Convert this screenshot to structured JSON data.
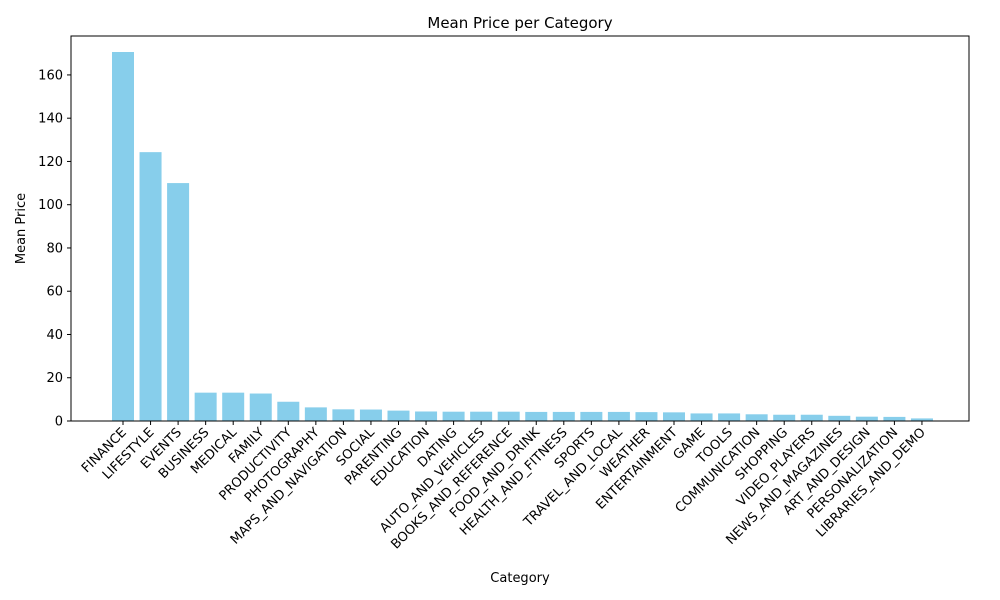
{
  "chart_data": {
    "type": "bar",
    "title": "Mean Price per Category",
    "xlabel": "Category",
    "ylabel": "Mean Price",
    "ylim": [
      0,
      178
    ],
    "yticks": [
      0,
      20,
      40,
      60,
      80,
      100,
      120,
      140,
      160
    ],
    "grid": false,
    "bar_color": "#87ceeb",
    "categories": [
      "FINANCE",
      "LIFESTYLE",
      "EVENTS",
      "BUSINESS",
      "MEDICAL",
      "FAMILY",
      "PRODUCTIVITY",
      "PHOTOGRAPHY",
      "MAPS_AND_NAVIGATION",
      "SOCIAL",
      "PARENTING",
      "EDUCATION",
      "DATING",
      "AUTO_AND_VEHICLES",
      "BOOKS_AND_REFERENCE",
      "FOOD_AND_DRINK",
      "HEALTH_AND_FITNESS",
      "SPORTS",
      "TRAVEL_AND_LOCAL",
      "WEATHER",
      "ENTERTAINMENT",
      "GAME",
      "TOOLS",
      "COMMUNICATION",
      "SHOPPING",
      "VIDEO_PLAYERS",
      "NEWS_AND_MAGAZINES",
      "ART_AND_DESIGN",
      "PERSONALIZATION",
      "LIBRARIES_AND_DEMO"
    ],
    "values": [
      170.6,
      124.3,
      110.0,
      13.1,
      13.1,
      12.7,
      8.9,
      6.3,
      5.4,
      5.3,
      4.8,
      4.4,
      4.3,
      4.3,
      4.3,
      4.2,
      4.2,
      4.2,
      4.2,
      4.1,
      4.0,
      3.5,
      3.5,
      3.1,
      2.9,
      2.9,
      2.4,
      2.0,
      1.9,
      1.2
    ]
  }
}
